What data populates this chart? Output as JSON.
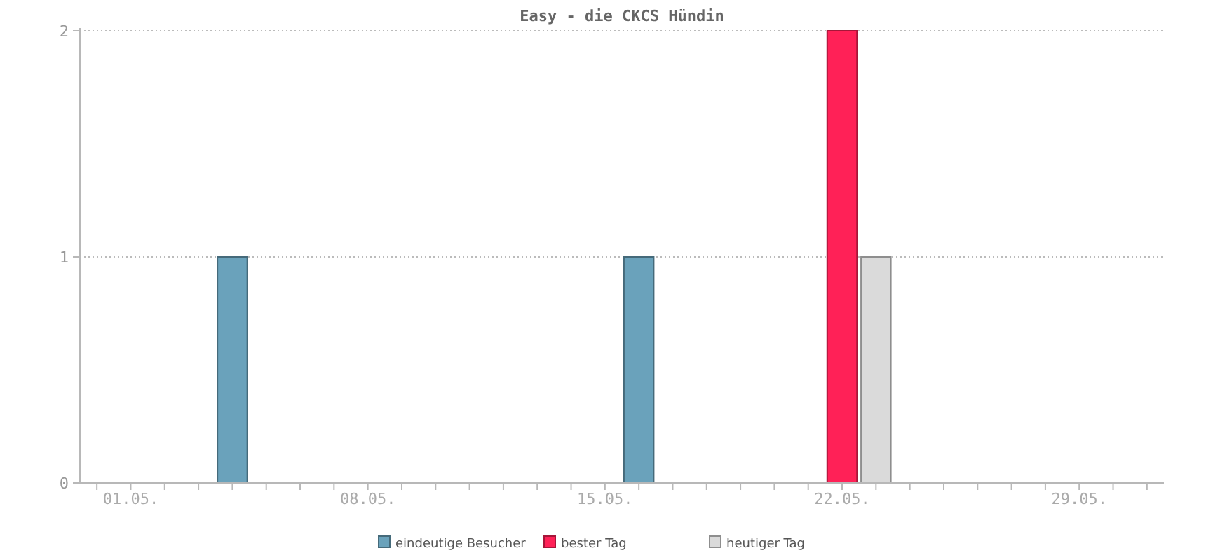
{
  "chart_data": {
    "type": "bar",
    "title": "Easy - die CKCS Hündin",
    "categories": [
      null,
      "01.05.",
      null,
      null,
      null,
      null,
      null,
      null,
      "08.05.",
      null,
      null,
      null,
      null,
      null,
      null,
      "15.05.",
      null,
      null,
      null,
      null,
      null,
      null,
      "22.05.",
      null,
      null,
      null,
      null,
      null,
      null,
      "29.05.",
      null,
      null
    ],
    "series": [
      {
        "name": "eindeutige Besucher",
        "color": "#6aa2bb",
        "values": [
          null,
          null,
          null,
          null,
          1,
          null,
          null,
          null,
          null,
          null,
          null,
          null,
          null,
          null,
          null,
          null,
          1,
          null,
          null,
          null,
          null,
          null,
          null,
          null,
          null,
          null,
          null,
          null,
          null,
          null,
          null,
          null
        ]
      },
      {
        "name": "bester Tag",
        "color": "#ff2157",
        "values": [
          null,
          null,
          null,
          null,
          null,
          null,
          null,
          null,
          null,
          null,
          null,
          null,
          null,
          null,
          null,
          null,
          null,
          null,
          null,
          null,
          null,
          null,
          2,
          null,
          null,
          null,
          null,
          null,
          null,
          null,
          null,
          null
        ]
      },
      {
        "name": "heutiger Tag",
        "color": "#dadada",
        "values": [
          null,
          null,
          null,
          null,
          null,
          null,
          null,
          null,
          null,
          null,
          null,
          null,
          null,
          null,
          null,
          null,
          null,
          null,
          null,
          null,
          null,
          null,
          null,
          1,
          null,
          null,
          null,
          null,
          null,
          null,
          null,
          null
        ]
      }
    ],
    "ylim": [
      0,
      2
    ],
    "yticks": [
      0,
      1,
      2
    ],
    "grid": "y",
    "legend": "bottom"
  }
}
